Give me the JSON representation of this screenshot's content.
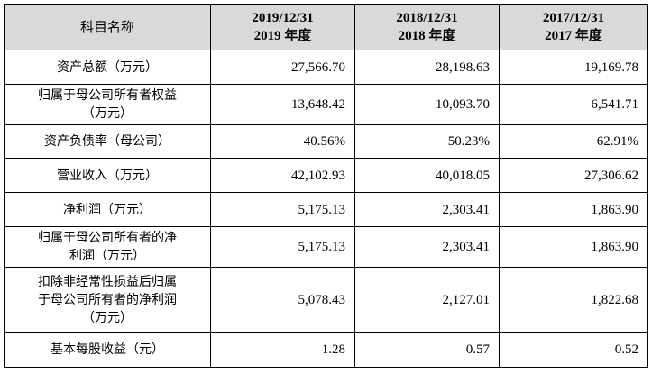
{
  "table": {
    "header": [
      [
        "科目名称"
      ],
      [
        "2019/12/31",
        "2019 年度"
      ],
      [
        "2018/12/31",
        "2018 年度"
      ],
      [
        "2017/12/31",
        "2017 年度"
      ]
    ],
    "rows": [
      {
        "label": [
          "资产总额（万元）"
        ],
        "values": [
          "27,566.70",
          "28,198.63",
          "19,169.78"
        ]
      },
      {
        "label": [
          "归属于母公司所有者权益",
          "（万元）"
        ],
        "values": [
          "13,648.42",
          "10,093.70",
          "6,541.71"
        ]
      },
      {
        "label": [
          "资产负债率（母公司）"
        ],
        "values": [
          "40.56%",
          "50.23%",
          "62.91%"
        ]
      },
      {
        "label": [
          "营业收入（万元）"
        ],
        "values": [
          "42,102.93",
          "40,018.05",
          "27,306.62"
        ]
      },
      {
        "label": [
          "净利润（万元）"
        ],
        "values": [
          "5,175.13",
          "2,303.41",
          "1,863.90"
        ]
      },
      {
        "label": [
          "归属于母公司所有者的净",
          "利润（万元）"
        ],
        "values": [
          "5,175.13",
          "2,303.41",
          "1,863.90"
        ]
      },
      {
        "label": [
          "扣除非经常性损益后归属",
          "于母公司所有者的净利润",
          "（万元）"
        ],
        "values": [
          "5,078.43",
          "2,127.01",
          "1,822.68"
        ]
      },
      {
        "label": [
          "基本每股收益（元）"
        ],
        "values": [
          "1.28",
          "0.57",
          "0.52"
        ]
      }
    ]
  }
}
